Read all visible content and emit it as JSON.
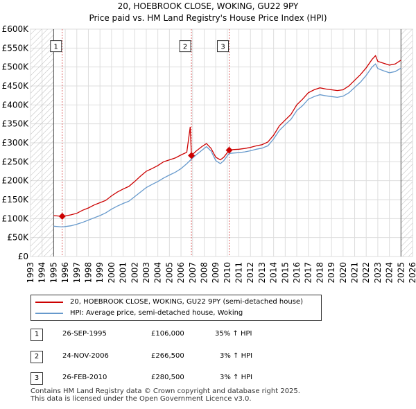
{
  "chart_data": {
    "type": "line",
    "title": "20, HOEBROOK CLOSE, WOKING, GU22 9PY",
    "subtitle": "Price paid vs. HM Land Registry's House Price Index (HPI)",
    "xlim": [
      1993,
      2026
    ],
    "ylim": [
      0,
      600000
    ],
    "x_ticks": [
      "1993",
      "1994",
      "1995",
      "1996",
      "1997",
      "1998",
      "1999",
      "2000",
      "2001",
      "2002",
      "2003",
      "2004",
      "2005",
      "2006",
      "2007",
      "2008",
      "2009",
      "2010",
      "2011",
      "2012",
      "2013",
      "2014",
      "2015",
      "2016",
      "2017",
      "2018",
      "2019",
      "2020",
      "2021",
      "2022",
      "2023",
      "2024",
      "2025",
      "2026"
    ],
    "y_ticks": [
      {
        "value": 0,
        "label": "£0"
      },
      {
        "value": 50000,
        "label": "£50K"
      },
      {
        "value": 100000,
        "label": "£100K"
      },
      {
        "value": 150000,
        "label": "£150K"
      },
      {
        "value": 200000,
        "label": "£200K"
      },
      {
        "value": 250000,
        "label": "£250K"
      },
      {
        "value": 300000,
        "label": "£300K"
      },
      {
        "value": 350000,
        "label": "£350K"
      },
      {
        "value": 400000,
        "label": "£400K"
      },
      {
        "value": 450000,
        "label": "£450K"
      },
      {
        "value": 500000,
        "label": "£500K"
      },
      {
        "value": 550000,
        "label": "£550K"
      },
      {
        "value": 600000,
        "label": "£600K"
      }
    ],
    "hatched_regions": [
      [
        1993,
        1995.0
      ],
      [
        2025.0,
        2026
      ]
    ],
    "series": [
      {
        "name": "20, HOEBROOK CLOSE, WOKING, GU22 9PY (semi-detached house)",
        "color": "#cc0000",
        "points": [
          [
            1995.0,
            108000
          ],
          [
            1995.74,
            106000
          ],
          [
            1996.0,
            107000
          ],
          [
            1996.5,
            110000
          ],
          [
            1997.0,
            114000
          ],
          [
            1997.5,
            122000
          ],
          [
            1998.0,
            128000
          ],
          [
            1998.5,
            136000
          ],
          [
            1999.0,
            142000
          ],
          [
            1999.5,
            148000
          ],
          [
            2000.0,
            160000
          ],
          [
            2000.5,
            170000
          ],
          [
            2001.0,
            178000
          ],
          [
            2001.5,
            185000
          ],
          [
            2002.0,
            198000
          ],
          [
            2002.5,
            212000
          ],
          [
            2003.0,
            225000
          ],
          [
            2003.5,
            232000
          ],
          [
            2004.0,
            240000
          ],
          [
            2004.5,
            250000
          ],
          [
            2005.0,
            255000
          ],
          [
            2005.5,
            260000
          ],
          [
            2006.0,
            268000
          ],
          [
            2006.5,
            275000
          ],
          [
            2006.8,
            342000
          ],
          [
            2006.9,
            266500
          ],
          [
            2007.3,
            278000
          ],
          [
            2007.8,
            290000
          ],
          [
            2008.2,
            298000
          ],
          [
            2008.6,
            285000
          ],
          [
            2009.0,
            262000
          ],
          [
            2009.4,
            255000
          ],
          [
            2009.7,
            262000
          ],
          [
            2010.16,
            280500
          ],
          [
            2010.5,
            282000
          ],
          [
            2011.0,
            283000
          ],
          [
            2011.5,
            285000
          ],
          [
            2012.0,
            288000
          ],
          [
            2012.5,
            292000
          ],
          [
            2013.0,
            295000
          ],
          [
            2013.5,
            302000
          ],
          [
            2014.0,
            320000
          ],
          [
            2014.5,
            345000
          ],
          [
            2015.0,
            360000
          ],
          [
            2015.5,
            375000
          ],
          [
            2016.0,
            400000
          ],
          [
            2016.5,
            415000
          ],
          [
            2017.0,
            432000
          ],
          [
            2017.5,
            440000
          ],
          [
            2018.0,
            445000
          ],
          [
            2018.5,
            442000
          ],
          [
            2019.0,
            440000
          ],
          [
            2019.5,
            438000
          ],
          [
            2020.0,
            440000
          ],
          [
            2020.5,
            450000
          ],
          [
            2021.0,
            465000
          ],
          [
            2021.5,
            480000
          ],
          [
            2022.0,
            498000
          ],
          [
            2022.5,
            520000
          ],
          [
            2022.8,
            530000
          ],
          [
            2023.0,
            515000
          ],
          [
            2023.5,
            510000
          ],
          [
            2024.0,
            505000
          ],
          [
            2024.5,
            508000
          ],
          [
            2025.0,
            518000
          ]
        ]
      },
      {
        "name": "HPI: Average price, semi-detached house, Woking",
        "color": "#6699cc",
        "points": [
          [
            1995.0,
            80000
          ],
          [
            1995.74,
            78000
          ],
          [
            1996.0,
            79000
          ],
          [
            1996.5,
            81000
          ],
          [
            1997.0,
            85000
          ],
          [
            1997.5,
            90000
          ],
          [
            1998.0,
            96000
          ],
          [
            1998.5,
            102000
          ],
          [
            1999.0,
            108000
          ],
          [
            1999.5,
            115000
          ],
          [
            2000.0,
            125000
          ],
          [
            2000.5,
            133000
          ],
          [
            2001.0,
            140000
          ],
          [
            2001.5,
            146000
          ],
          [
            2002.0,
            158000
          ],
          [
            2002.5,
            170000
          ],
          [
            2003.0,
            182000
          ],
          [
            2003.5,
            190000
          ],
          [
            2004.0,
            198000
          ],
          [
            2004.5,
            207000
          ],
          [
            2005.0,
            215000
          ],
          [
            2005.5,
            222000
          ],
          [
            2006.0,
            232000
          ],
          [
            2006.5,
            245000
          ],
          [
            2006.9,
            257000
          ],
          [
            2007.3,
            268000
          ],
          [
            2007.8,
            280000
          ],
          [
            2008.2,
            290000
          ],
          [
            2008.6,
            278000
          ],
          [
            2009.0,
            253000
          ],
          [
            2009.4,
            245000
          ],
          [
            2009.7,
            253000
          ],
          [
            2010.16,
            272000
          ],
          [
            2010.5,
            273000
          ],
          [
            2011.0,
            274000
          ],
          [
            2011.5,
            276000
          ],
          [
            2012.0,
            279000
          ],
          [
            2012.5,
            283000
          ],
          [
            2013.0,
            286000
          ],
          [
            2013.5,
            292000
          ],
          [
            2014.0,
            310000
          ],
          [
            2014.5,
            333000
          ],
          [
            2015.0,
            348000
          ],
          [
            2015.5,
            362000
          ],
          [
            2016.0,
            385000
          ],
          [
            2016.5,
            398000
          ],
          [
            2017.0,
            415000
          ],
          [
            2017.5,
            422000
          ],
          [
            2018.0,
            427000
          ],
          [
            2018.5,
            424000
          ],
          [
            2019.0,
            422000
          ],
          [
            2019.5,
            420000
          ],
          [
            2020.0,
            423000
          ],
          [
            2020.5,
            432000
          ],
          [
            2021.0,
            446000
          ],
          [
            2021.5,
            460000
          ],
          [
            2022.0,
            478000
          ],
          [
            2022.5,
            500000
          ],
          [
            2022.8,
            508000
          ],
          [
            2023.0,
            496000
          ],
          [
            2023.5,
            490000
          ],
          [
            2024.0,
            485000
          ],
          [
            2024.5,
            488000
          ],
          [
            2025.0,
            497000
          ]
        ]
      }
    ],
    "sale_markers": [
      {
        "label": "1",
        "date": 1995.74,
        "price": 106000
      },
      {
        "label": "2",
        "date": 2006.9,
        "price": 266500
      },
      {
        "label": "3",
        "date": 2010.16,
        "price": 280500
      }
    ],
    "marker_label_value": 555000
  },
  "legend": {
    "items": [
      {
        "label": "20, HOEBROOK CLOSE, WOKING, GU22 9PY (semi-detached house)",
        "color": "#cc0000"
      },
      {
        "label": "HPI: Average price, semi-detached house, Woking",
        "color": "#6699cc"
      }
    ]
  },
  "sales": [
    {
      "num": "1",
      "date": "26-SEP-1995",
      "price": "£106,000",
      "hpi": "35% ↑ HPI"
    },
    {
      "num": "2",
      "date": "24-NOV-2006",
      "price": "£266,500",
      "hpi": "3% ↑ HPI"
    },
    {
      "num": "3",
      "date": "26-FEB-2010",
      "price": "£280,500",
      "hpi": "3% ↑ HPI"
    }
  ],
  "footer": {
    "line1": "Contains HM Land Registry data © Crown copyright and database right 2025.",
    "line2": "This data is licensed under the Open Government Licence v3.0."
  }
}
